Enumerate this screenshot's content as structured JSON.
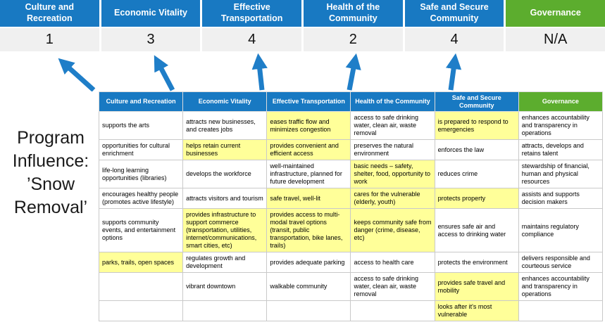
{
  "title": "Program Influence: ’Snow Removal’",
  "colors": {
    "blue": "#1879C2",
    "green": "#5CAD2E",
    "yellow": "#FFFF99",
    "grayband": "#F0F0F0",
    "arrow": "#1F7EC8"
  },
  "summary": {
    "columns": [
      {
        "label": "Culture and Recreation",
        "score": "1"
      },
      {
        "label": "Economic Vitality",
        "score": "3"
      },
      {
        "label": "Effective Transportation",
        "score": "4"
      },
      {
        "label": "Health of the Community",
        "score": "2"
      },
      {
        "label": "Safe and Secure Community",
        "score": "4"
      },
      {
        "label": "Governance",
        "score": "N/A"
      }
    ]
  },
  "matrix": {
    "headers": [
      "Culture and Recreation",
      "Economic Vitality",
      "Effective Transportation",
      "Health of the Community",
      "Safe and Secure Community",
      "Governance"
    ],
    "rows": [
      [
        {
          "text": "supports the arts",
          "highlight": false
        },
        {
          "text": "attracts new businesses, and creates jobs",
          "highlight": false
        },
        {
          "text": "eases traffic flow and minimizes congestion",
          "highlight": true
        },
        {
          "text": "access to safe drinking water, clean air, waste removal",
          "highlight": false
        },
        {
          "text": "is prepared to respond to emergencies",
          "highlight": true
        },
        {
          "text": "enhances accountability and transparency in operations",
          "highlight": false
        }
      ],
      [
        {
          "text": "opportunities for cultural enrichment",
          "highlight": false
        },
        {
          "text": "helps retain current businesses",
          "highlight": true
        },
        {
          "text": "provides convenient and efficient access",
          "highlight": true
        },
        {
          "text": "preserves the natural environment",
          "highlight": false
        },
        {
          "text": "enforces the law",
          "highlight": false
        },
        {
          "text": "attracts, develops and retains talent",
          "highlight": false
        }
      ],
      [
        {
          "text": "life-long learning opportunities (libraries)",
          "highlight": false
        },
        {
          "text": "develops the workforce",
          "highlight": false
        },
        {
          "text": "well-maintained infrastructure, planned for future development",
          "highlight": false
        },
        {
          "text": "basic needs – safety, shelter, food, opportunity to work",
          "highlight": true
        },
        {
          "text": "reduces crime",
          "highlight": false
        },
        {
          "text": "stewardship of financial, human and physical resources",
          "highlight": false
        }
      ],
      [
        {
          "text": "encourages healthy people (promotes active lifestyle)",
          "highlight": false
        },
        {
          "text": "attracts visitors and tourism",
          "highlight": false
        },
        {
          "text": "safe travel, well-lit",
          "highlight": true
        },
        {
          "text": "cares for the vulnerable (elderly, youth)",
          "highlight": true
        },
        {
          "text": "protects property",
          "highlight": true
        },
        {
          "text": "assists and supports decision makers",
          "highlight": false
        }
      ],
      [
        {
          "text": "supports community events, and entertainment options",
          "highlight": false
        },
        {
          "text": "provides infrastructure to support commerce (transportation, utilities, internet/communications, smart cities, etc)",
          "highlight": true
        },
        {
          "text": "provides access to multi-modal travel options (transit, public transportation, bike lanes, trails)",
          "highlight": true
        },
        {
          "text": "keeps community safe from danger (crime, disease, etc)",
          "highlight": true
        },
        {
          "text": "ensures safe air and access to drinking water",
          "highlight": false
        },
        {
          "text": "maintains regulatory compliance",
          "highlight": false
        }
      ],
      [
        {
          "text": "parks, trails, open spaces",
          "highlight": true
        },
        {
          "text": "regulates growth and development",
          "highlight": false
        },
        {
          "text": "provides adequate parking",
          "highlight": false
        },
        {
          "text": "access to health care",
          "highlight": false
        },
        {
          "text": "protects the environment",
          "highlight": false
        },
        {
          "text": "delivers responsible and courteous service",
          "highlight": false
        }
      ],
      [
        {
          "text": "",
          "highlight": false
        },
        {
          "text": "vibrant downtown",
          "highlight": false
        },
        {
          "text": "walkable community",
          "highlight": false
        },
        {
          "text": "access to safe drinking water, clean air, waste removal",
          "highlight": false
        },
        {
          "text": "provides safe travel and mobility",
          "highlight": true
        },
        {
          "text": "enhances accountability and transparency in operations",
          "highlight": false
        }
      ],
      [
        {
          "text": "",
          "highlight": false
        },
        {
          "text": "",
          "highlight": false
        },
        {
          "text": "",
          "highlight": false
        },
        {
          "text": "",
          "highlight": false
        },
        {
          "text": "looks after it's most vulnerable",
          "highlight": true
        },
        {
          "text": "",
          "highlight": false
        }
      ]
    ]
  }
}
